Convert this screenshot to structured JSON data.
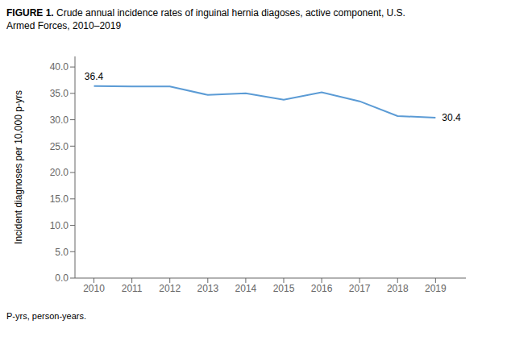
{
  "chart_data": {
    "type": "line",
    "title": "FIGURE 1. Crude annual incidence rates of inguinal hernia diagoses, active component, U.S.\nArmed Forces, 2010–2019",
    "ylabel": "Incident diagnoses per 10,000 p-yrs",
    "footnote": "P-yrs, person-years.",
    "x": [
      2010,
      2011,
      2012,
      2013,
      2014,
      2015,
      2016,
      2017,
      2018,
      2019
    ],
    "values": [
      36.4,
      36.3,
      36.3,
      34.7,
      35.0,
      33.8,
      35.2,
      33.5,
      30.7,
      30.4
    ],
    "color": "#5b9bd5",
    "xlim": [
      2009.5,
      2019.8
    ],
    "xticks": [
      2010,
      2011,
      2012,
      2013,
      2014,
      2015,
      2016,
      2017,
      2018,
      2019
    ],
    "ylim": [
      0,
      42
    ],
    "yticks": [
      {
        "value": 0.0,
        "label": "0.0"
      },
      {
        "value": 5.0,
        "label": "5.0"
      },
      {
        "value": 10.0,
        "label": "10.0"
      },
      {
        "value": 15.0,
        "label": "15.0"
      },
      {
        "value": 20.0,
        "label": "20.0"
      },
      {
        "value": 25.0,
        "label": "25.0"
      },
      {
        "value": 30.0,
        "label": "30.0"
      },
      {
        "value": 35.0,
        "label": "35.0"
      },
      {
        "value": 40.0,
        "label": "40.0"
      }
    ],
    "annotations": [
      {
        "text": "36.4",
        "x": 2010,
        "y": 36.4
      },
      {
        "text": "30.4",
        "x": 2019,
        "y": 30.4
      }
    ],
    "grid": false
  }
}
